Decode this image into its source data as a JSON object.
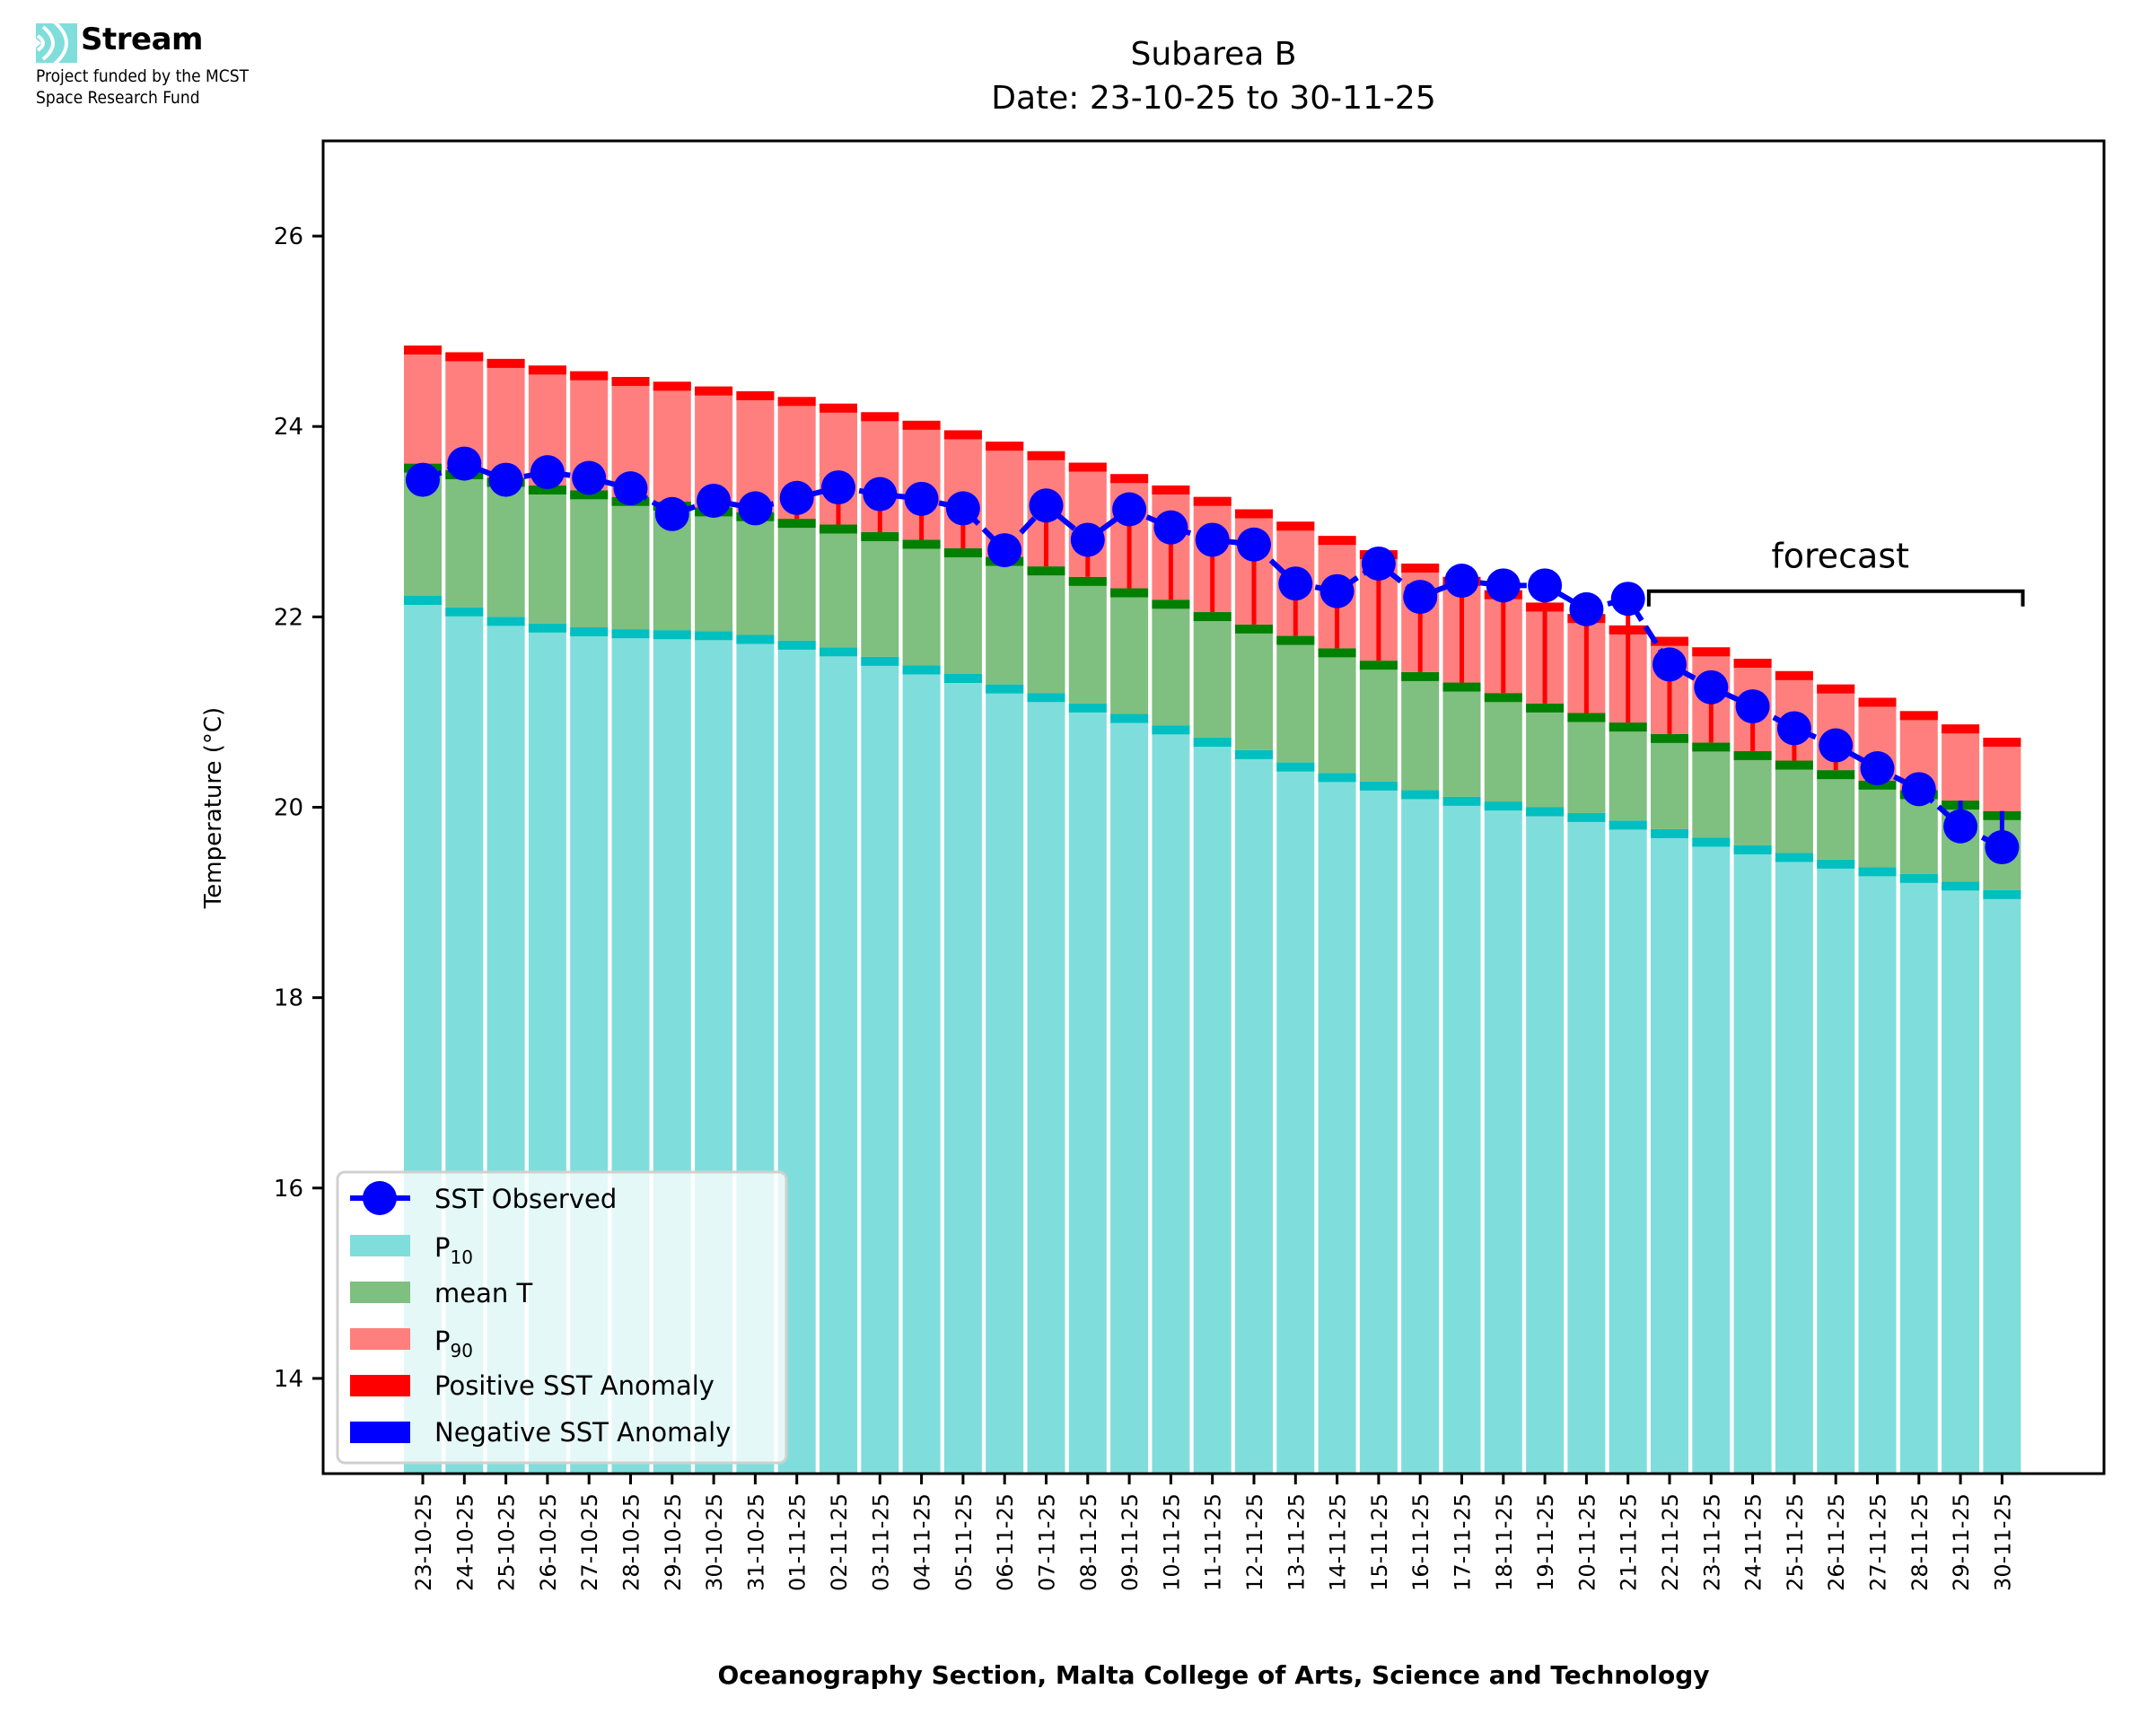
{
  "logo": {
    "name": "Stream",
    "subtitle_line1": "Project funded by the MCST",
    "subtitle_line2": "Space Research Fund",
    "icon": "stream-waves-icon",
    "color": "#7fdedb"
  },
  "chart_data": {
    "type": "bar",
    "title": "Subarea B",
    "subtitle": "Date: 23-10-25 to 30-11-25",
    "xlabel": "Oceanography Section, Malta College of Arts, Science and Technology",
    "ylabel": "Temperature (°C)",
    "ylim": [
      13,
      27
    ],
    "yticks": [
      14,
      16,
      18,
      20,
      22,
      24,
      26
    ],
    "grid": false,
    "legend_position": "lower-left",
    "categories": [
      "23-10-25",
      "24-10-25",
      "25-10-25",
      "26-10-25",
      "27-10-25",
      "28-10-25",
      "29-10-25",
      "30-10-25",
      "31-10-25",
      "01-11-25",
      "02-11-25",
      "03-11-25",
      "04-11-25",
      "05-11-25",
      "06-11-25",
      "07-11-25",
      "08-11-25",
      "09-11-25",
      "10-11-25",
      "11-11-25",
      "12-11-25",
      "13-11-25",
      "14-11-25",
      "15-11-25",
      "16-11-25",
      "17-11-25",
      "18-11-25",
      "19-11-25",
      "20-11-25",
      "21-11-25",
      "22-11-25",
      "23-11-25",
      "24-11-25",
      "25-11-25",
      "26-11-25",
      "27-11-25",
      "28-11-25",
      "29-11-25",
      "30-11-25"
    ],
    "series": [
      {
        "name": "P10",
        "legend_label": "P",
        "legend_sub": "10",
        "kind": "bar",
        "color": "#7fdedb",
        "edge_color": "#00bfc0",
        "values": [
          22.22,
          22.1,
          22.0,
          21.93,
          21.89,
          21.87,
          21.86,
          21.85,
          21.81,
          21.75,
          21.68,
          21.58,
          21.49,
          21.4,
          21.29,
          21.2,
          21.09,
          20.98,
          20.86,
          20.73,
          20.6,
          20.47,
          20.36,
          20.27,
          20.18,
          20.11,
          20.06,
          20.0,
          19.94,
          19.86,
          19.77,
          19.68,
          19.6,
          19.52,
          19.45,
          19.37,
          19.3,
          19.22,
          19.13
        ]
      },
      {
        "name": "mean T",
        "legend_label": "mean T",
        "legend_sub": "",
        "kind": "bar",
        "color": "#7fbf7f",
        "edge_color": "#008000",
        "values": [
          23.61,
          23.54,
          23.46,
          23.38,
          23.33,
          23.26,
          23.21,
          23.15,
          23.1,
          23.03,
          22.97,
          22.89,
          22.81,
          22.72,
          22.63,
          22.53,
          22.42,
          22.3,
          22.18,
          22.05,
          21.92,
          21.8,
          21.67,
          21.54,
          21.42,
          21.31,
          21.2,
          21.09,
          20.99,
          20.89,
          20.77,
          20.68,
          20.59,
          20.49,
          20.39,
          20.28,
          20.18,
          20.07,
          19.96
        ]
      },
      {
        "name": "P90",
        "legend_label": "P",
        "legend_sub": "90",
        "kind": "bar",
        "color": "#ff7f7f",
        "edge_color": "#ff0000",
        "values": [
          24.85,
          24.78,
          24.71,
          24.64,
          24.58,
          24.52,
          24.47,
          24.42,
          24.37,
          24.31,
          24.24,
          24.15,
          24.06,
          23.96,
          23.84,
          23.74,
          23.62,
          23.5,
          23.38,
          23.26,
          23.13,
          23.0,
          22.85,
          22.7,
          22.56,
          22.42,
          22.28,
          22.15,
          22.03,
          21.91,
          21.79,
          21.68,
          21.56,
          21.43,
          21.29,
          21.15,
          21.01,
          20.87,
          20.73
        ]
      },
      {
        "name": "SST Observed",
        "legend_label": "SST Observed",
        "legend_sub": "",
        "kind": "line",
        "color": "#0000ff",
        "values": [
          23.44,
          23.61,
          23.44,
          23.52,
          23.46,
          23.35,
          23.08,
          23.22,
          23.14,
          23.25,
          23.36,
          23.29,
          23.24,
          23.14,
          22.7,
          23.17,
          22.81,
          23.13,
          22.94,
          22.81,
          22.76,
          22.35,
          22.27,
          22.56,
          22.21,
          22.38,
          22.33,
          22.33,
          22.08,
          22.19,
          21.5,
          21.26,
          21.06,
          20.83,
          20.65,
          20.41,
          20.19,
          19.8,
          19.58
        ]
      }
    ],
    "anomaly_legend": [
      {
        "name": "Positive SST Anomaly",
        "color": "#ff0000"
      },
      {
        "name": "Negative SST Anomaly",
        "color": "#0000ff"
      }
    ],
    "annotation": {
      "text": "forecast",
      "from_category": "22-11-25",
      "to_category": "30-11-25",
      "bracket_y": 22.27
    }
  }
}
